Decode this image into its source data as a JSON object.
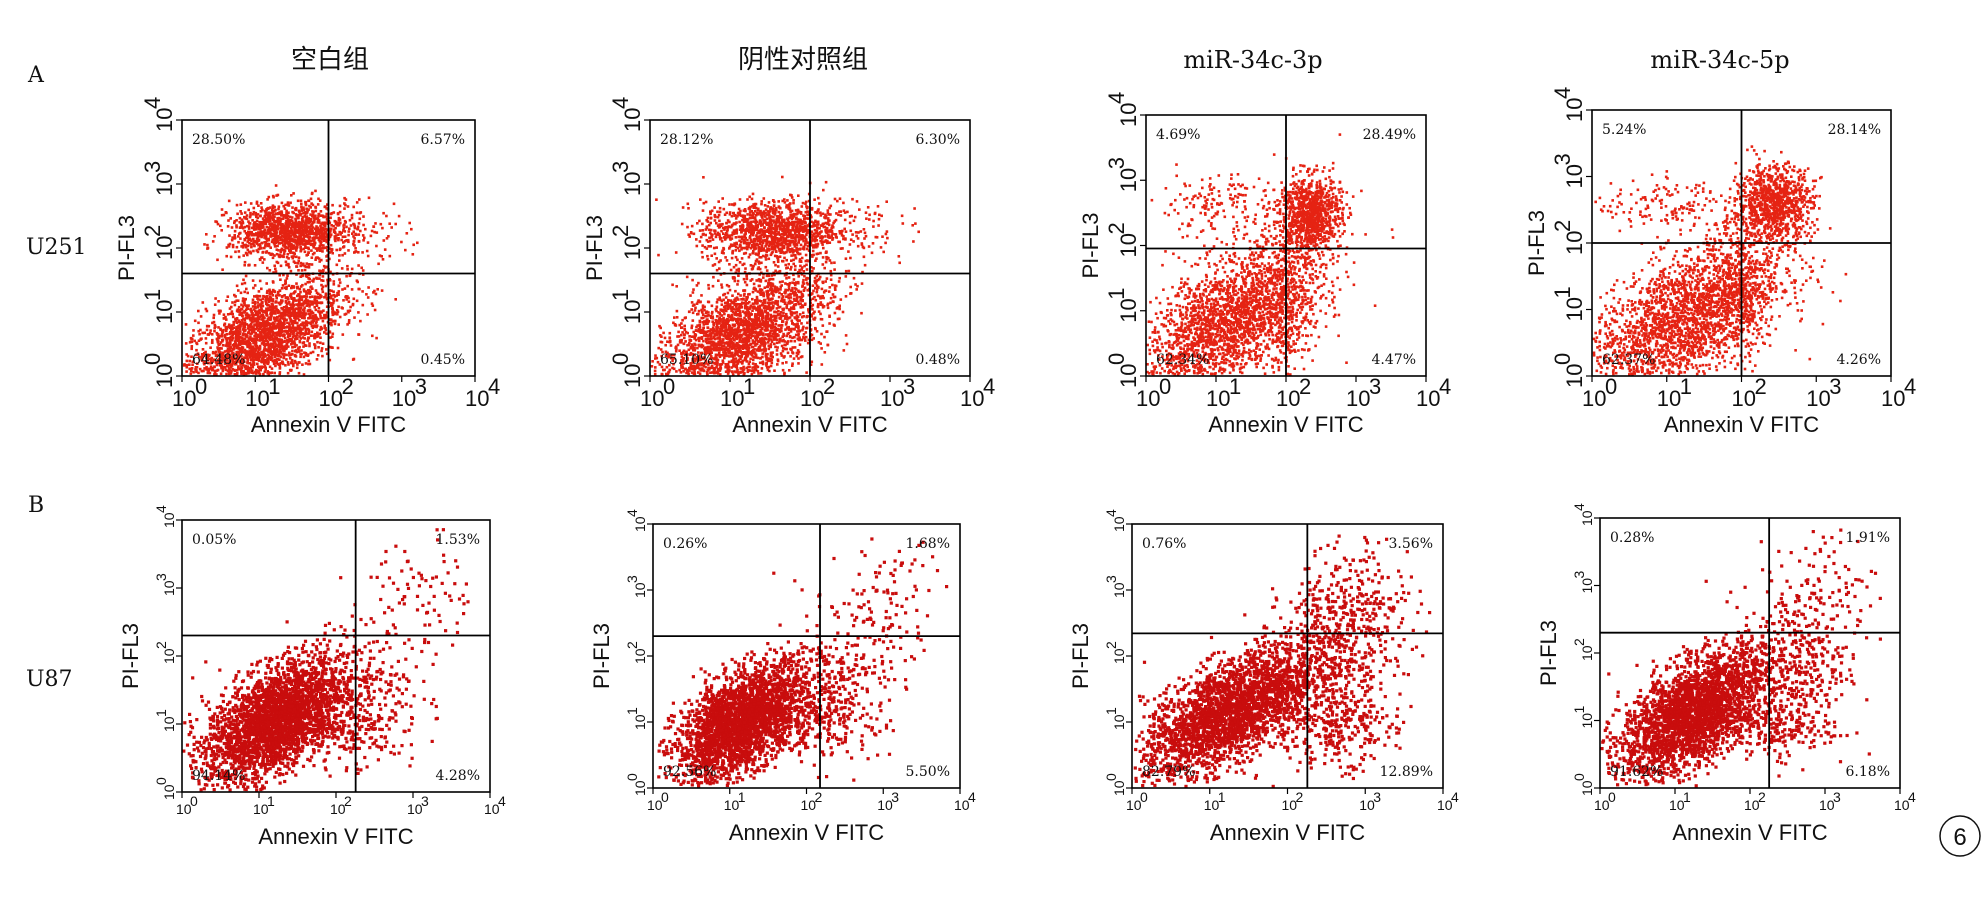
{
  "figure": {
    "panel_labels": [
      "A",
      "B"
    ],
    "row_labels": [
      "U251",
      "U87"
    ],
    "column_titles": [
      "空白组",
      "阴性对照组",
      "miR-34c-3p",
      "miR-34c-5p"
    ],
    "badge": "6"
  },
  "colors": {
    "row_a_dots": "#e52313",
    "row_b_dots": "#c90d0d",
    "axes": "#000000"
  },
  "chart_data": [
    {
      "type": "scatter",
      "row": "A",
      "cell_line": "U251",
      "group": "空白组",
      "xlabel": "Annexin V FITC",
      "ylabel": "PI-FL3",
      "scale": "log",
      "xlim": [
        1,
        10000
      ],
      "ylim": [
        1,
        10000
      ],
      "x_ticks": [
        "10",
        "10",
        "10",
        "10",
        "10"
      ],
      "tick_exponents": [
        "0",
        "1",
        "2",
        "3",
        "4"
      ],
      "gate_x": 100,
      "gate_y": 40,
      "quadrants": {
        "upper_left": "28.50%",
        "upper_right": "6.57%",
        "lower_left": "64.48%",
        "lower_right": "0.45%"
      }
    },
    {
      "type": "scatter",
      "row": "A",
      "cell_line": "U251",
      "group": "阴性对照组",
      "xlabel": "Annexin V FITC",
      "ylabel": "PI-FL3",
      "scale": "log",
      "xlim": [
        1,
        10000
      ],
      "ylim": [
        1,
        10000
      ],
      "x_ticks": [
        "10",
        "10",
        "10",
        "10",
        "10"
      ],
      "tick_exponents": [
        "0",
        "1",
        "2",
        "3",
        "4"
      ],
      "gate_x": 100,
      "gate_y": 40,
      "quadrants": {
        "upper_left": "28.12%",
        "upper_right": "6.30%",
        "lower_left": "65.10%",
        "lower_right": "0.48%"
      }
    },
    {
      "type": "scatter",
      "row": "A",
      "cell_line": "U251",
      "group": "miR-34c-3p",
      "xlabel": "Annexin V FITC",
      "ylabel": "PI-FL3",
      "scale": "log",
      "xlim": [
        1,
        10000
      ],
      "ylim": [
        1,
        10000
      ],
      "x_ticks": [
        "10",
        "10",
        "10",
        "10",
        "10"
      ],
      "tick_exponents": [
        "0",
        "1",
        "2",
        "3",
        "4"
      ],
      "gate_x": 100,
      "gate_y": 90,
      "quadrants": {
        "upper_left": "4.69%",
        "upper_right": "28.49%",
        "lower_left": "62.34%",
        "lower_right": "4.47%"
      }
    },
    {
      "type": "scatter",
      "row": "A",
      "cell_line": "U251",
      "group": "miR-34c-5p",
      "xlabel": "Annexin V FITC",
      "ylabel": "PI-FL3",
      "scale": "log",
      "xlim": [
        1,
        10000
      ],
      "ylim": [
        1,
        10000
      ],
      "x_ticks": [
        "10",
        "10",
        "10",
        "10",
        "10"
      ],
      "tick_exponents": [
        "0",
        "1",
        "2",
        "3",
        "4"
      ],
      "gate_x": 100,
      "gate_y": 100,
      "quadrants": {
        "upper_left": "5.24%",
        "upper_right": "28.14%",
        "lower_left": "62.37%",
        "lower_right": "4.26%"
      }
    },
    {
      "type": "scatter",
      "row": "B",
      "cell_line": "U87",
      "group": "空白组",
      "xlabel": "Annexin V FITC",
      "ylabel": "PI-FL3",
      "scale": "log",
      "xlim": [
        1,
        10000
      ],
      "ylim": [
        1,
        10000
      ],
      "x_ticks": [
        "10",
        "10",
        "10",
        "10",
        "10"
      ],
      "tick_exponents": [
        "0",
        "1",
        "2",
        "3",
        "4"
      ],
      "gate_x": 180,
      "gate_y": 200,
      "quadrants": {
        "upper_left": "0.05%",
        "upper_right": "1.53%",
        "lower_left": "94.14%",
        "lower_right": "4.28%"
      }
    },
    {
      "type": "scatter",
      "row": "B",
      "cell_line": "U87",
      "group": "阴性对照组",
      "xlabel": "Annexin V FITC",
      "ylabel": "PI-FL3",
      "scale": "log",
      "xlim": [
        1,
        10000
      ],
      "ylim": [
        1,
        10000
      ],
      "x_ticks": [
        "10",
        "10",
        "10",
        "10",
        "10"
      ],
      "tick_exponents": [
        "0",
        "1",
        "2",
        "3",
        "4"
      ],
      "gate_x": 150,
      "gate_y": 200,
      "quadrants": {
        "upper_left": "0.26%",
        "upper_right": "1.68%",
        "lower_left": "92.56%",
        "lower_right": "5.50%"
      }
    },
    {
      "type": "scatter",
      "row": "B",
      "cell_line": "U87",
      "group": "miR-34c-3p",
      "xlabel": "Annexin V FITC",
      "ylabel": "PI-FL3",
      "scale": "log",
      "xlim": [
        1,
        10000
      ],
      "ylim": [
        1,
        10000
      ],
      "x_ticks": [
        "10",
        "10",
        "10",
        "10",
        "10"
      ],
      "tick_exponents": [
        "0",
        "1",
        "2",
        "3",
        "4"
      ],
      "gate_x": 180,
      "gate_y": 220,
      "quadrants": {
        "upper_left": "0.76%",
        "upper_right": "3.56%",
        "lower_left": "82.79%",
        "lower_right": "12.89%"
      }
    },
    {
      "type": "scatter",
      "row": "B",
      "cell_line": "U87",
      "group": "miR-34c-5p",
      "xlabel": "Annexin V FITC",
      "ylabel": "PI-FL3",
      "scale": "log",
      "xlim": [
        1,
        10000
      ],
      "ylim": [
        1,
        10000
      ],
      "x_ticks": [
        "10",
        "10",
        "10",
        "10",
        "10"
      ],
      "tick_exponents": [
        "0",
        "1",
        "2",
        "3",
        "4"
      ],
      "gate_x": 180,
      "gate_y": 200,
      "quadrants": {
        "upper_left": "0.28%",
        "upper_right": "1.91%",
        "lower_left": "91.62%",
        "lower_right": "6.18%"
      }
    }
  ]
}
